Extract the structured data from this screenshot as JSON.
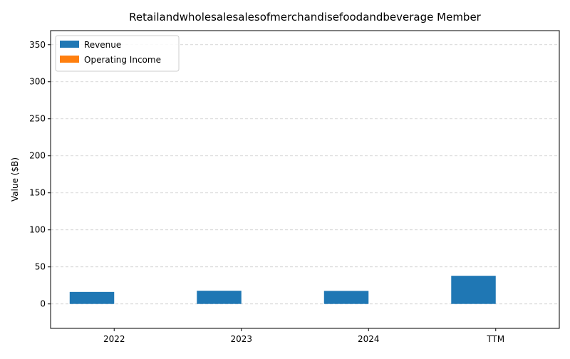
{
  "chart_data": {
    "type": "bar",
    "title": "Retailandwholesalesalesofmerchandisefoodandbeverage Member",
    "xlabel": "",
    "ylabel": "Value ($B)",
    "categories": [
      "2022",
      "2023",
      "2024",
      "TTM"
    ],
    "series": [
      {
        "name": "Revenue",
        "values": [
          16.2,
          17.8,
          17.6,
          38.0
        ],
        "color": "#1f77b4"
      },
      {
        "name": "Operating Income",
        "values": [
          0,
          0,
          0,
          0
        ],
        "color": "#ff7f0e"
      }
    ],
    "ylim": [
      -33,
      369
    ],
    "yticks": [
      0,
      50,
      100,
      150,
      200,
      250,
      300,
      350
    ],
    "grid": "y, dashed",
    "legend_position": "top-left"
  }
}
